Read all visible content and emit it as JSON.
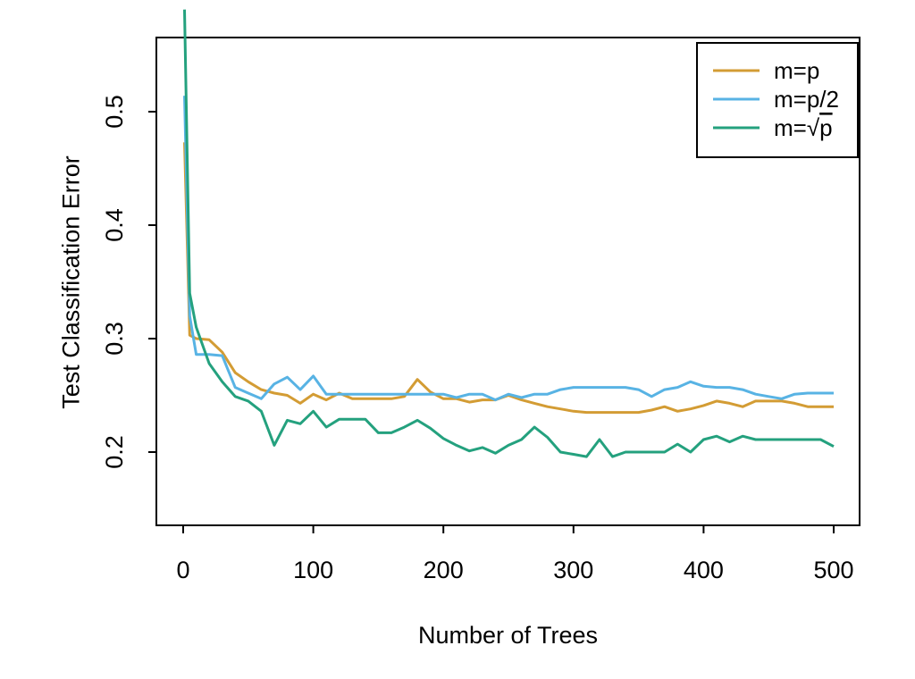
{
  "figure": {
    "background": "#ffffff",
    "axis_color": "#000000"
  },
  "chart_data": {
    "type": "line",
    "title": "",
    "xlabel": "Number of Trees",
    "ylabel": "Test Classification Error",
    "x_ticks": [
      0,
      100,
      200,
      300,
      400,
      500
    ],
    "y_ticks": [
      0.2,
      0.3,
      0.4,
      0.5
    ],
    "xlim": [
      -20,
      520
    ],
    "ylim": [
      0.135,
      0.565
    ],
    "grid": false,
    "legend_position": "top-right",
    "x": [
      1,
      5,
      10,
      20,
      30,
      40,
      50,
      60,
      70,
      80,
      90,
      100,
      110,
      120,
      130,
      140,
      150,
      160,
      170,
      180,
      190,
      200,
      210,
      220,
      230,
      240,
      250,
      260,
      270,
      280,
      290,
      300,
      310,
      320,
      330,
      340,
      350,
      360,
      370,
      380,
      390,
      400,
      410,
      420,
      430,
      440,
      450,
      460,
      470,
      480,
      490,
      500
    ],
    "series": [
      {
        "name": "m=p",
        "color": "#d39c34",
        "legend": {
          "text": "m=p"
        },
        "values": [
          0.473,
          0.303,
          0.3,
          0.299,
          0.288,
          0.27,
          0.262,
          0.255,
          0.252,
          0.25,
          0.243,
          0.251,
          0.246,
          0.252,
          0.247,
          0.247,
          0.247,
          0.247,
          0.249,
          0.264,
          0.253,
          0.247,
          0.247,
          0.244,
          0.246,
          0.246,
          0.25,
          0.246,
          0.243,
          0.24,
          0.238,
          0.236,
          0.235,
          0.235,
          0.235,
          0.235,
          0.235,
          0.237,
          0.24,
          0.236,
          0.238,
          0.241,
          0.245,
          0.243,
          0.24,
          0.245,
          0.245,
          0.245,
          0.243,
          0.24,
          0.24,
          0.24
        ]
      },
      {
        "name": "m=p/2",
        "color": "#58b3e4",
        "legend": {
          "text": "m=p/2"
        },
        "values": [
          0.514,
          0.32,
          0.286,
          0.286,
          0.285,
          0.257,
          0.252,
          0.247,
          0.26,
          0.266,
          0.255,
          0.267,
          0.251,
          0.251,
          0.251,
          0.251,
          0.251,
          0.251,
          0.251,
          0.251,
          0.251,
          0.251,
          0.248,
          0.251,
          0.251,
          0.246,
          0.251,
          0.248,
          0.251,
          0.251,
          0.255,
          0.257,
          0.257,
          0.257,
          0.257,
          0.257,
          0.255,
          0.249,
          0.255,
          0.257,
          0.262,
          0.258,
          0.257,
          0.257,
          0.255,
          0.251,
          0.249,
          0.247,
          0.251,
          0.252,
          0.252,
          0.252
        ]
      },
      {
        "name": "m=sqrt(p)",
        "color": "#24a17e",
        "legend": {
          "text": "m=√",
          "radicand": "p"
        },
        "values": [
          0.59,
          0.34,
          0.31,
          0.278,
          0.262,
          0.249,
          0.245,
          0.236,
          0.206,
          0.228,
          0.225,
          0.236,
          0.222,
          0.229,
          0.229,
          0.229,
          0.217,
          0.217,
          0.222,
          0.228,
          0.221,
          0.212,
          0.206,
          0.201,
          0.204,
          0.199,
          0.206,
          0.211,
          0.222,
          0.213,
          0.2,
          0.198,
          0.196,
          0.211,
          0.196,
          0.2,
          0.2,
          0.2,
          0.2,
          0.207,
          0.2,
          0.211,
          0.214,
          0.209,
          0.214,
          0.211,
          0.211,
          0.211,
          0.211,
          0.211,
          0.211,
          0.205
        ]
      }
    ]
  }
}
